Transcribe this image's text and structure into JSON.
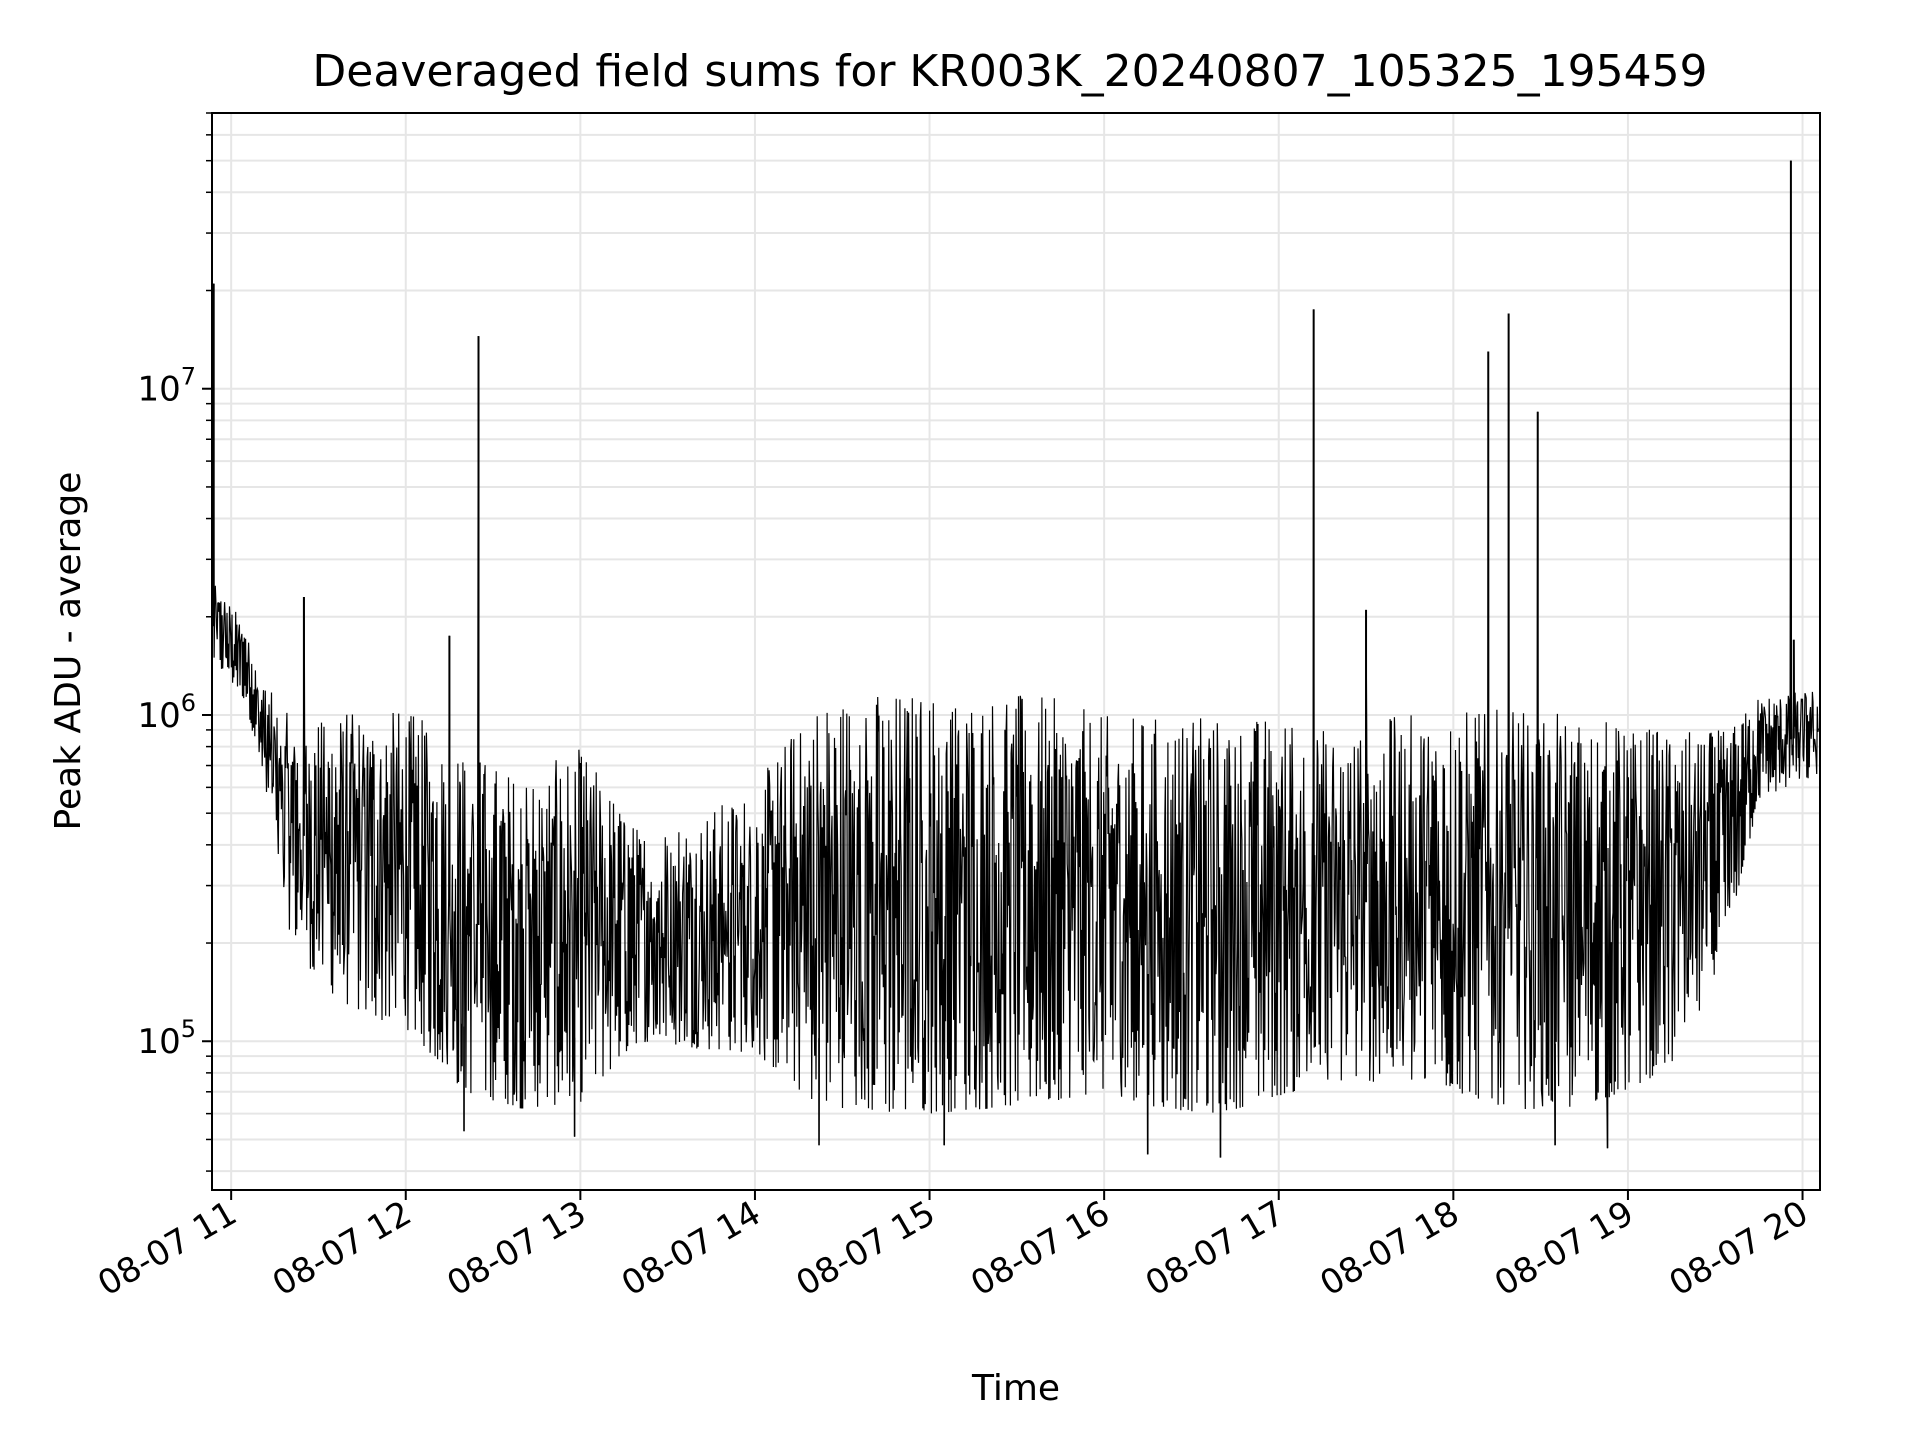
{
  "chart_data": {
    "type": "line",
    "title": "Deaveraged field sums for KR003K_20240807_105325_195459",
    "xlabel": "Time",
    "ylabel": "Peak ADU - average",
    "x_axis": "datetime",
    "y_scale": "log",
    "xlim": [
      "2024-08-07 10:53:25",
      "2024-08-07 20:06:00"
    ],
    "ylim": [
      35000,
      70000000
    ],
    "grid": true,
    "line_color": "#000000",
    "x_ticks": [
      "08-07 11",
      "08-07 12",
      "08-07 13",
      "08-07 14",
      "08-07 15",
      "08-07 16",
      "08-07 17",
      "08-07 18",
      "08-07 19",
      "08-07 20"
    ],
    "x_tick_times": [
      "2024-08-07 11:00",
      "2024-08-07 12:00",
      "2024-08-07 13:00",
      "2024-08-07 14:00",
      "2024-08-07 15:00",
      "2024-08-07 16:00",
      "2024-08-07 17:00",
      "2024-08-07 18:00",
      "2024-08-07 19:00",
      "2024-08-07 20:00"
    ],
    "y_ticks": [
      {
        "value": 100000,
        "base": "10",
        "exp": "5"
      },
      {
        "value": 1000000,
        "base": "10",
        "exp": "6"
      },
      {
        "value": 10000000,
        "base": "10",
        "exp": "7"
      }
    ],
    "series": [
      {
        "envelope": [
          {
            "t": "2024-08-07 10:55",
            "high": 2500000,
            "low": 1400000
          },
          {
            "t": "2024-08-07 11:05",
            "high": 1900000,
            "low": 1100000
          },
          {
            "t": "2024-08-07 11:10",
            "high": 1300000,
            "low": 700000
          },
          {
            "t": "2024-08-07 11:20",
            "high": 1000000,
            "low": 220000
          },
          {
            "t": "2024-08-07 11:30",
            "high": 1000000,
            "low": 150000
          },
          {
            "t": "2024-08-07 11:45",
            "high": 1050000,
            "low": 120000
          },
          {
            "t": "2024-08-07 12:00",
            "high": 1050000,
            "low": 110000
          },
          {
            "t": "2024-08-07 12:20",
            "high": 800000,
            "low": 70000
          },
          {
            "t": "2024-08-07 12:40",
            "high": 650000,
            "low": 62000
          },
          {
            "t": "2024-08-07 13:00",
            "high": 800000,
            "low": 65000
          },
          {
            "t": "2024-08-07 13:20",
            "high": 450000,
            "low": 100000
          },
          {
            "t": "2024-08-07 13:40",
            "high": 500000,
            "low": 95000
          },
          {
            "t": "2024-08-07 14:00",
            "high": 600000,
            "low": 92000
          },
          {
            "t": "2024-08-07 14:20",
            "high": 1150000,
            "low": 65000
          },
          {
            "t": "2024-08-07 14:40",
            "high": 1200000,
            "low": 60000
          },
          {
            "t": "2024-08-07 15:00",
            "high": 1200000,
            "low": 60000
          },
          {
            "t": "2024-08-07 15:20",
            "high": 1200000,
            "low": 62000
          },
          {
            "t": "2024-08-07 15:40",
            "high": 1150000,
            "low": 65000
          },
          {
            "t": "2024-08-07 16:00",
            "high": 1000000,
            "low": 70000
          },
          {
            "t": "2024-08-07 16:20",
            "high": 1000000,
            "low": 62000
          },
          {
            "t": "2024-08-07 16:40",
            "high": 1000000,
            "low": 60000
          },
          {
            "t": "2024-08-07 17:00",
            "high": 1000000,
            "low": 68000
          },
          {
            "t": "2024-08-07 17:20",
            "high": 900000,
            "low": 75000
          },
          {
            "t": "2024-08-07 17:40",
            "high": 1000000,
            "low": 75000
          },
          {
            "t": "2024-08-07 18:00",
            "high": 1050000,
            "low": 70000
          },
          {
            "t": "2024-08-07 18:20",
            "high": 1050000,
            "low": 62000
          },
          {
            "t": "2024-08-07 18:40",
            "high": 1000000,
            "low": 62000
          },
          {
            "t": "2024-08-07 19:00",
            "high": 950000,
            "low": 70000
          },
          {
            "t": "2024-08-07 19:20",
            "high": 900000,
            "low": 90000
          },
          {
            "t": "2024-08-07 19:35",
            "high": 900000,
            "low": 220000
          },
          {
            "t": "2024-08-07 19:45",
            "high": 1150000,
            "low": 550000
          },
          {
            "t": "2024-08-07 20:05",
            "high": 1200000,
            "low": 650000
          }
        ],
        "spikes": [
          {
            "t": "2024-08-07 10:54",
            "value": 21000000
          },
          {
            "t": "2024-08-07 11:25",
            "value": 2300000
          },
          {
            "t": "2024-08-07 12:15",
            "value": 1750000
          },
          {
            "t": "2024-08-07 12:25",
            "value": 14500000
          },
          {
            "t": "2024-08-07 17:12",
            "value": 17500000
          },
          {
            "t": "2024-08-07 17:30",
            "value": 2100000
          },
          {
            "t": "2024-08-07 18:12",
            "value": 13000000
          },
          {
            "t": "2024-08-07 18:19",
            "value": 17000000
          },
          {
            "t": "2024-08-07 18:29",
            "value": 8500000
          },
          {
            "t": "2024-08-07 19:56",
            "value": 50000000
          },
          {
            "t": "2024-08-07 19:57",
            "value": 1700000
          }
        ],
        "dips": [
          {
            "t": "2024-08-07 12:20",
            "value": 53000
          },
          {
            "t": "2024-08-07 12:58",
            "value": 51000
          },
          {
            "t": "2024-08-07 14:22",
            "value": 48000
          },
          {
            "t": "2024-08-07 15:05",
            "value": 48000
          },
          {
            "t": "2024-08-07 16:15",
            "value": 45000
          },
          {
            "t": "2024-08-07 16:40",
            "value": 44000
          },
          {
            "t": "2024-08-07 18:35",
            "value": 48000
          },
          {
            "t": "2024-08-07 18:53",
            "value": 47000
          }
        ]
      }
    ]
  }
}
